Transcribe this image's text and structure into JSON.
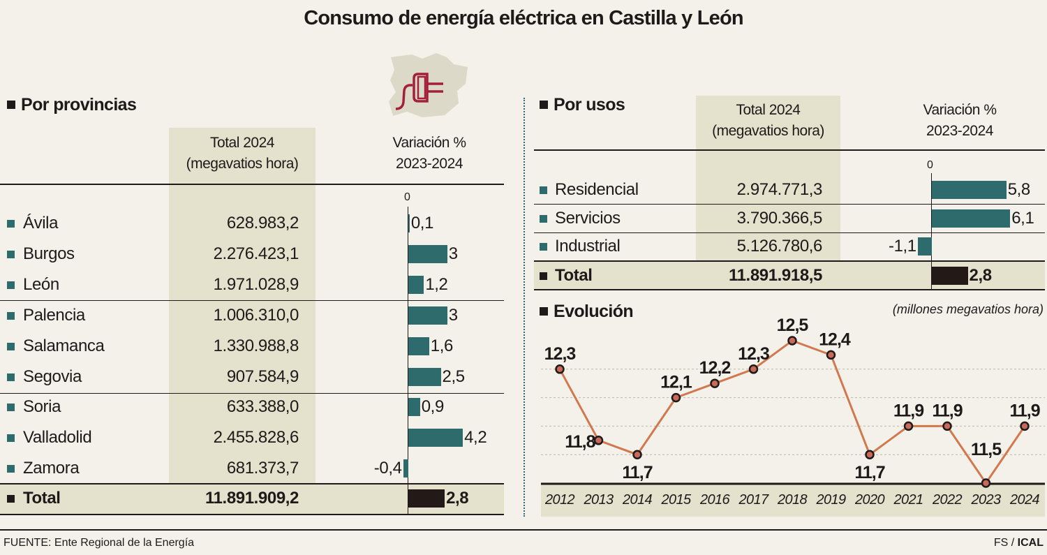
{
  "title": "Consumo de energía eléctrica en Castilla y León",
  "icon": "plug-on-map-icon",
  "colors": {
    "bar": "#2e6b6d",
    "total_bar": "#231a17",
    "line": "#d2784f",
    "highlight": "#e4e1cd",
    "background": "#f3f1ea"
  },
  "provincias": {
    "heading": "Por provincias",
    "col_total": [
      "Total 2024",
      "(megavatios hora)"
    ],
    "col_var": [
      "Variación %",
      "2023-2024"
    ],
    "zero_label": "0",
    "rows": [
      {
        "name": "Ávila",
        "total": "628.983,2",
        "var": 0.1,
        "var_label": "0,1"
      },
      {
        "name": "Burgos",
        "total": "2.276.423,1",
        "var": 3,
        "var_label": "3"
      },
      {
        "name": "León",
        "total": "1.971.028,9",
        "var": 1.2,
        "var_label": "1,2"
      },
      {
        "name": "Palencia",
        "total": "1.006.310,0",
        "var": 3,
        "var_label": "3"
      },
      {
        "name": "Salamanca",
        "total": "1.330.988,8",
        "var": 1.6,
        "var_label": "1,6"
      },
      {
        "name": "Segovia",
        "total": "907.584,9",
        "var": 2.5,
        "var_label": "2,5"
      },
      {
        "name": "Soria",
        "total": "633.388,0",
        "var": 0.9,
        "var_label": "0,9"
      },
      {
        "name": "Valladolid",
        "total": "2.455.828,6",
        "var": 4.2,
        "var_label": "4,2"
      },
      {
        "name": "Zamora",
        "total": "681.373,7",
        "var": -0.4,
        "var_label": "-0,4"
      }
    ],
    "total": {
      "name": "Total",
      "total": "11.891.909,2",
      "var": 2.8,
      "var_label": "2,8"
    }
  },
  "usos": {
    "heading": "Por usos",
    "col_total": [
      "Total 2024",
      "(megavatios hora)"
    ],
    "col_var": [
      "Variación %",
      "2023-2024"
    ],
    "zero_label": "0",
    "rows": [
      {
        "name": "Residencial",
        "total": "2.974.771,3",
        "var": 5.8,
        "var_label": "5,8"
      },
      {
        "name": "Servicios",
        "total": "3.790.366,5",
        "var": 6.1,
        "var_label": "6,1"
      },
      {
        "name": "Industrial",
        "total": "5.126.780,6",
        "var": -1.1,
        "var_label": "-1,1"
      }
    ],
    "total": {
      "name": "Total",
      "total": "11.891.918,5",
      "var": 2.8,
      "var_label": "2,8"
    }
  },
  "chart_data": [
    {
      "type": "bar",
      "title": "Por provincias - Variación % 2023-2024",
      "categories": [
        "Ávila",
        "Burgos",
        "León",
        "Palencia",
        "Salamanca",
        "Segovia",
        "Soria",
        "Valladolid",
        "Zamora",
        "Total"
      ],
      "values": [
        0.1,
        3,
        1.2,
        3,
        1.6,
        2.5,
        0.9,
        4.2,
        -0.4,
        2.8
      ]
    },
    {
      "type": "bar",
      "title": "Por usos - Variación % 2023-2024",
      "categories": [
        "Residencial",
        "Servicios",
        "Industrial",
        "Total"
      ],
      "values": [
        5.8,
        6.1,
        -1.1,
        2.8
      ]
    },
    {
      "type": "line",
      "title": "Evolución",
      "ylabel": "(millones megavatios hora)",
      "x": [
        "2012",
        "2013",
        "2014",
        "2015",
        "2016",
        "2017",
        "2018",
        "2019",
        "2020",
        "2021",
        "2022",
        "2023",
        "2024"
      ],
      "values": [
        12.3,
        11.8,
        11.7,
        12.1,
        12.2,
        12.3,
        12.5,
        12.4,
        11.7,
        11.9,
        11.9,
        11.5,
        11.9
      ],
      "labels": [
        "12,3",
        "11,8",
        "11,7",
        "12,1",
        "12,2",
        "12,3",
        "12,5",
        "12,4",
        "11,7",
        "11,9",
        "11,9",
        "11,5",
        "11,9"
      ],
      "label_pos": [
        "above",
        "left",
        "below",
        "above",
        "above",
        "above",
        "above",
        "above",
        "below",
        "above",
        "above",
        "above",
        "above"
      ],
      "ylim": [
        11.5,
        12.5
      ],
      "grid": true
    }
  ],
  "footer": {
    "source": "FUENTE: Ente Regional de la Energía",
    "credit_a": "FS / ",
    "credit_b": "ICAL"
  }
}
